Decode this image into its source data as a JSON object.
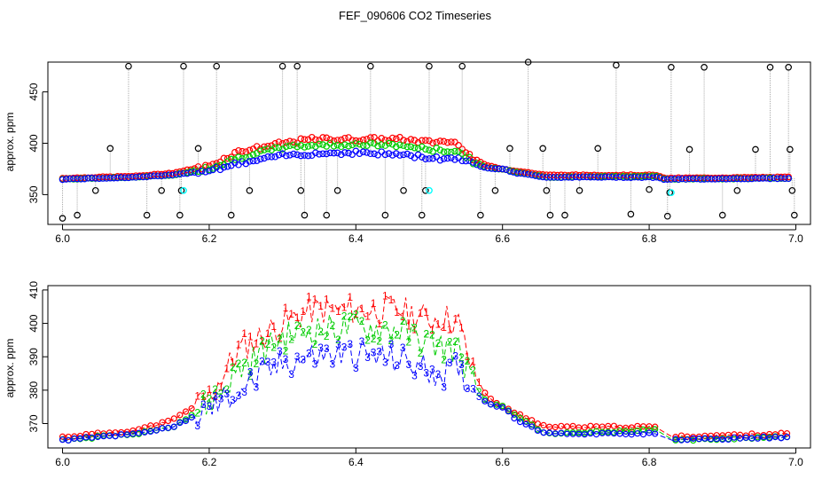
{
  "title": "FEF_090606  CO2 Timeseries",
  "chart_data": [
    {
      "type": "scatter",
      "title": "FEF_090606  CO2 Timeseries",
      "xlabel": "",
      "ylabel": "approx. ppm",
      "xlim": [
        5.98,
        7.02
      ],
      "ylim": [
        321,
        479
      ],
      "xticks": [
        6.0,
        6.2,
        6.4,
        6.6,
        6.8,
        7.0
      ],
      "xtick_labels": [
        "6.0",
        "6.2",
        "6.4",
        "6.6",
        "6.8",
        "7.0"
      ],
      "yticks": [
        350,
        400,
        450
      ],
      "ytick_labels": [
        "350",
        "400",
        "450"
      ],
      "colors": {
        "s1": "#ff0000",
        "s2": "#00cc00",
        "s3": "#0000ff",
        "black": "#000000",
        "cyan": "#00ffff",
        "droplines": "#aaaaaa"
      },
      "profile_x": [
        6.0,
        6.1,
        6.15,
        6.2,
        6.24,
        6.3,
        6.34,
        6.4,
        6.46,
        6.5,
        6.52,
        6.54,
        6.56,
        6.58,
        6.6,
        6.62,
        6.66,
        6.8,
        6.81,
        6.82,
        6.99
      ],
      "s1_y": [
        366,
        368,
        371,
        378,
        392,
        400,
        404,
        404,
        404,
        401,
        402,
        400,
        385,
        378,
        375,
        373,
        369,
        369,
        369,
        366,
        367
      ],
      "s2_y": [
        365,
        367,
        369,
        376,
        386,
        396,
        398,
        399,
        398,
        394,
        393,
        392,
        382,
        376,
        375,
        372,
        367,
        368,
        368,
        365,
        366
      ],
      "s3_y": [
        365,
        367,
        369,
        374,
        380,
        388,
        390,
        391,
        389,
        386,
        385,
        386,
        380,
        376,
        375,
        371,
        367,
        367,
        367,
        365,
        366
      ],
      "black_points": {
        "x": [
          6.0,
          6.02,
          6.045,
          6.065,
          6.09,
          6.115,
          6.135,
          6.16,
          6.162,
          6.165,
          6.185,
          6.21,
          6.23,
          6.255,
          6.3,
          6.32,
          6.325,
          6.33,
          6.36,
          6.375,
          6.42,
          6.44,
          6.465,
          6.49,
          6.495,
          6.5,
          6.545,
          6.57,
          6.59,
          6.61,
          6.635,
          6.655,
          6.66,
          6.665,
          6.685,
          6.705,
          6.73,
          6.755,
          6.775,
          6.8,
          6.825,
          6.828,
          6.83,
          6.855,
          6.875,
          6.9,
          6.92,
          6.945,
          6.965,
          6.99,
          6.992,
          6.995,
          6.998
        ],
        "y": [
          327,
          330,
          354,
          395,
          475,
          330,
          354,
          330,
          354,
          475,
          395,
          475,
          330,
          354,
          475,
          475,
          354,
          330,
          330,
          354,
          475,
          330,
          354,
          330,
          354,
          475,
          475,
          330,
          354,
          395,
          479,
          395,
          354,
          330,
          330,
          354,
          395,
          476,
          331,
          355,
          329,
          352,
          474,
          394,
          474,
          330,
          354,
          394,
          474,
          474,
          394,
          354,
          330
        ]
      },
      "cyan_points": {
        "x": [
          6.165,
          6.5,
          6.83
        ],
        "y": [
          354,
          354,
          352
        ]
      }
    },
    {
      "type": "line",
      "xlabel": "",
      "ylabel": "approx. ppm",
      "xlim": [
        5.98,
        7.02
      ],
      "ylim": [
        362.7,
        411.3
      ],
      "xticks": [
        6.0,
        6.2,
        6.4,
        6.6,
        6.8,
        7.0
      ],
      "xtick_labels": [
        "6.0",
        "6.2",
        "6.4",
        "6.6",
        "6.8",
        "7.0"
      ],
      "yticks": [
        370,
        380,
        390,
        400,
        410
      ],
      "ytick_labels": [
        "370",
        "380",
        "390",
        "400",
        "410"
      ],
      "series_symbols": [
        "1",
        "2",
        "3"
      ],
      "note_series": "same three series as the upper panel, drawn as numbered line-symbols"
    }
  ]
}
